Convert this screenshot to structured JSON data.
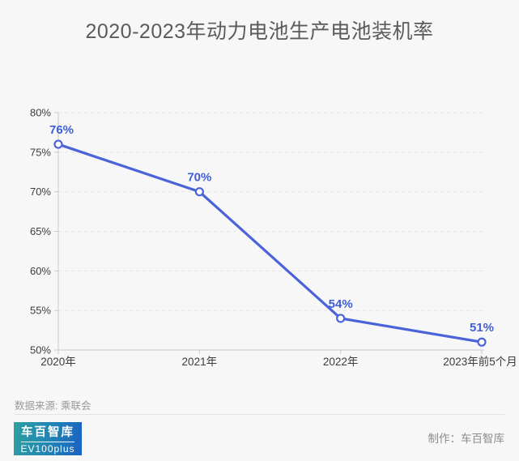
{
  "title": "2020-2023年动力电池生产电池装机率",
  "chart_data": {
    "type": "line",
    "title": "2020-2023年动力电池生产电池装机率",
    "categories": [
      "2020年",
      "2021年",
      "2022年",
      "2023年前5个月"
    ],
    "values": [
      76,
      70,
      54,
      51
    ],
    "point_labels": [
      "76%",
      "70%",
      "54%",
      "51%"
    ],
    "ylim": [
      50,
      80
    ],
    "ytick_step": 5,
    "ytick_labels": [
      "50%",
      "55%",
      "60%",
      "65%",
      "70%",
      "75%",
      "80%"
    ],
    "grid": "dashed horizontal",
    "legend": "none",
    "line_color": "#4a63d8",
    "marker_fill": "#fdfdfe",
    "label_color": "#3f5ed9",
    "axis_color": "#c8c8cc",
    "grid_color": "#e4e4e6",
    "tick_label_color": "#3c3c3c"
  },
  "source": "数据来源: 乘联会",
  "footer": {
    "logo_line1": "车百智库",
    "logo_line2": "EV100plus",
    "credit": "制作：车百智库"
  }
}
